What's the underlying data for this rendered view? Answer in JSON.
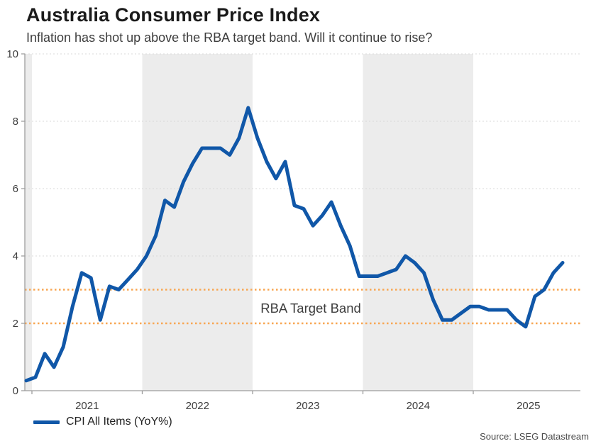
{
  "header": {
    "title": "Australia Consumer Price Index",
    "subtitle": "Inflation has shot up above the RBA target band. Will it continue to rise?"
  },
  "legend": {
    "series_label": "CPI All Items (YoY%)"
  },
  "footer": {
    "source": "Source: LSEG Datastream"
  },
  "colors": {
    "line": "#1057a8",
    "target_band": "#f8a652",
    "gridline": "#d9d9d9",
    "axis": "#9d9d9d",
    "tick_text": "#3d3d3d",
    "band_fill": "#ececec",
    "annotation_text": "#3d3d3d"
  },
  "chart_data": {
    "type": "line",
    "title": "Australia Consumer Price Index",
    "subtitle": "Inflation has shot up above the RBA target band. Will it continue to rise?",
    "ylabel": "",
    "xlabel": "",
    "ylim": [
      0,
      10
    ],
    "y_ticks": [
      0,
      2,
      4,
      6,
      8,
      10
    ],
    "gridline_values": [
      4,
      6,
      8,
      10
    ],
    "grid": "horizontal-dotted",
    "x_year_ticks": [
      2021,
      2022,
      2023,
      2024,
      2025
    ],
    "shaded_years": [
      2020,
      2022,
      2024
    ],
    "target_band": {
      "low": 2,
      "high": 3,
      "label": "RBA Target Band"
    },
    "legend_position": "bottom-left",
    "series": [
      {
        "name": "CPI All Items (YoY%)",
        "frequency": "monthly",
        "start_month": "2020-12",
        "end_month": "2025-10",
        "values": [
          0.3,
          0.4,
          1.1,
          0.7,
          1.3,
          2.5,
          3.5,
          3.35,
          2.1,
          3.1,
          3.0,
          3.3,
          3.6,
          4.0,
          4.6,
          5.65,
          5.45,
          6.2,
          6.75,
          7.2,
          7.2,
          7.2,
          7.0,
          7.5,
          8.4,
          7.5,
          6.8,
          6.3,
          6.8,
          5.5,
          5.4,
          4.9,
          5.2,
          5.6,
          4.9,
          4.3,
          3.4,
          3.4,
          3.4,
          3.5,
          3.6,
          4.0,
          3.8,
          3.5,
          2.7,
          2.1,
          2.1,
          2.3,
          2.5,
          2.5,
          2.4,
          2.4,
          2.4,
          2.1,
          1.9,
          2.8,
          3.0,
          3.5,
          3.8
        ]
      }
    ]
  }
}
